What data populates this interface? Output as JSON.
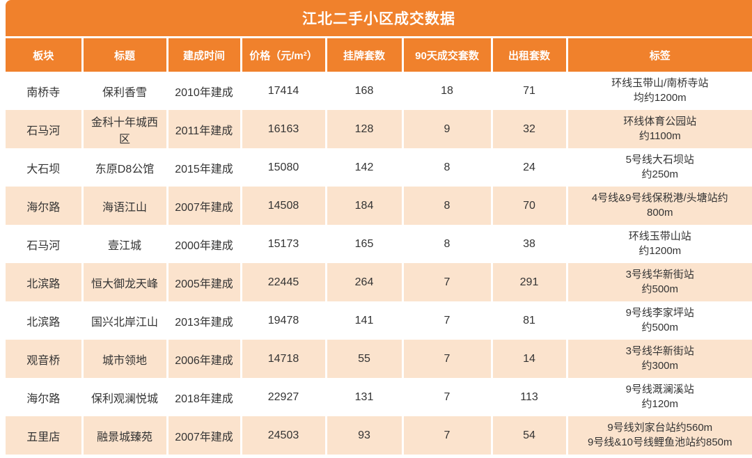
{
  "chart_data": {
    "type": "table",
    "title": "江北二手小区成交数据",
    "columns": [
      "板块",
      "标题",
      "建成时间",
      "价格（元/m²）",
      "挂牌套数",
      "90天成交套数",
      "出租套数",
      "标签"
    ],
    "rows": [
      {
        "block": "南桥寺",
        "name": "保利香雪",
        "built": "2010年建成",
        "price": "17414",
        "listed": "168",
        "deals90": "18",
        "rent": "71",
        "tag": "环线玉带山/南桥寺站\n均约1200m"
      },
      {
        "block": "石马河",
        "name": "金科十年城西区",
        "built": "2011年建成",
        "price": "16163",
        "listed": "128",
        "deals90": "9",
        "rent": "32",
        "tag": "环线体育公园站\n约1100m"
      },
      {
        "block": "大石坝",
        "name": "东原D8公馆",
        "built": "2015年建成",
        "price": "15080",
        "listed": "142",
        "deals90": "8",
        "rent": "24",
        "tag": "5号线大石坝站\n约250m"
      },
      {
        "block": "海尔路",
        "name": "海语江山",
        "built": "2007年建成",
        "price": "14508",
        "listed": "184",
        "deals90": "8",
        "rent": "70",
        "tag": "4号线&9号线保税港/头塘站约\n800m"
      },
      {
        "block": "石马河",
        "name": "壹江城",
        "built": "2000年建成",
        "price": "15173",
        "listed": "165",
        "deals90": "8",
        "rent": "38",
        "tag": "环线玉带山站\n约1200m"
      },
      {
        "block": "北滨路",
        "name": "恒大御龙天峰",
        "built": "2005年建成",
        "price": "22445",
        "listed": "264",
        "deals90": "7",
        "rent": "291",
        "tag": "3号线华新街站\n约500m"
      },
      {
        "block": "北滨路",
        "name": "国兴北岸江山",
        "built": "2013年建成",
        "price": "19478",
        "listed": "141",
        "deals90": "7",
        "rent": "81",
        "tag": "9号线李家坪站\n约500m"
      },
      {
        "block": "观音桥",
        "name": "城市领地",
        "built": "2006年建成",
        "price": "14718",
        "listed": "55",
        "deals90": "7",
        "rent": "14",
        "tag": "3号线华新街站\n约300m"
      },
      {
        "block": "海尔路",
        "name": "保利观澜悦城",
        "built": "2018年建成",
        "price": "22927",
        "listed": "131",
        "deals90": "7",
        "rent": "113",
        "tag": "9号线溉澜溪站\n约120m"
      },
      {
        "block": "五里店",
        "name": "融景城臻苑",
        "built": "2007年建成",
        "price": "24503",
        "listed": "93",
        "deals90": "7",
        "rent": "54",
        "tag": "9号线刘家台站约560m\n9号线&10号线鲤鱼池站约850m"
      }
    ],
    "layout": {
      "header_color": "#F0812C",
      "row_alt_color": "#FBE3CD",
      "text_color": "#333333",
      "grid": "white-separators"
    }
  }
}
